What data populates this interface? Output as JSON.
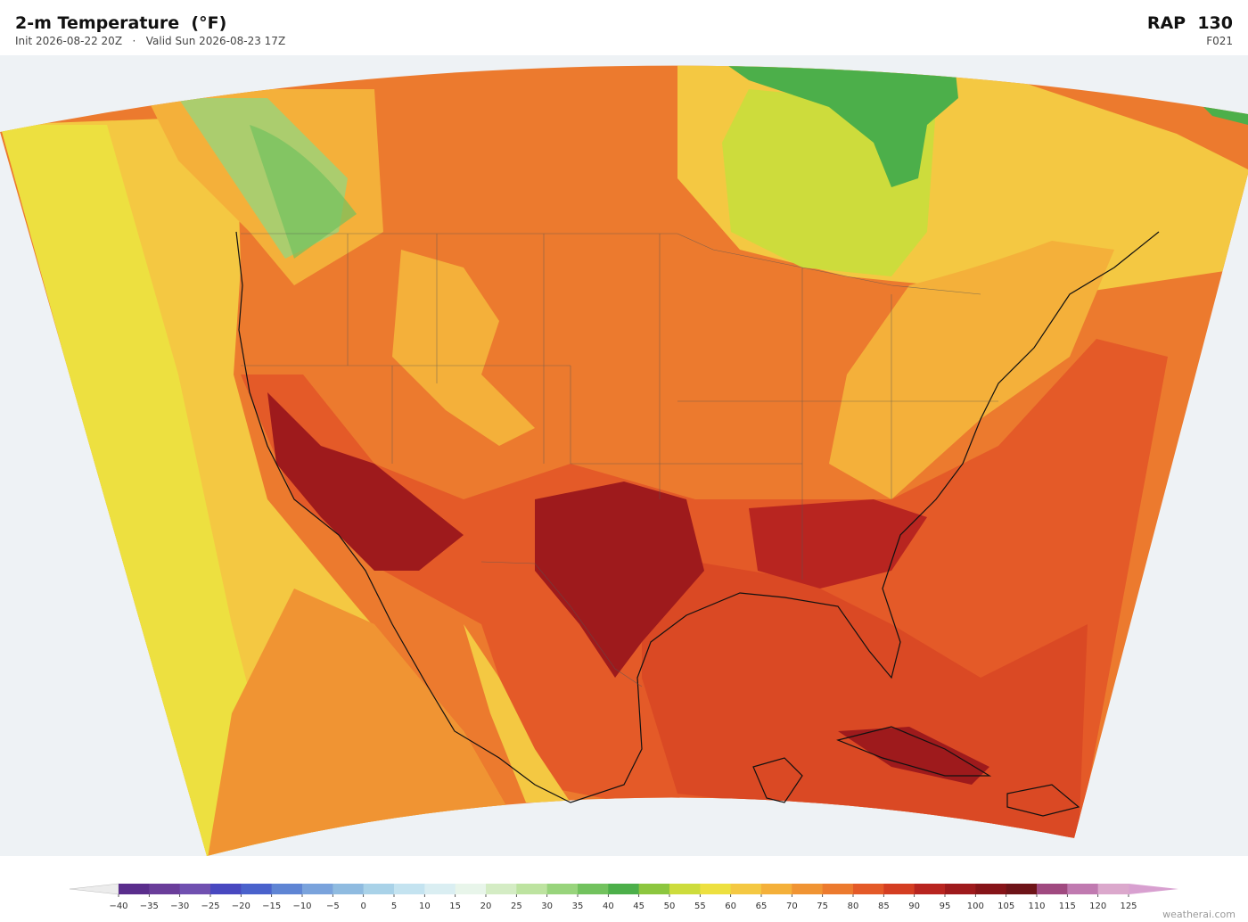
{
  "header": {
    "title": "2-m Temperature  (°F)",
    "subtitle": "Init 2026-08-22 20Z   ·   Valid Sun 2026-08-23 17Z",
    "model": "RAP  130",
    "forecast_hour": "F021"
  },
  "colorbar": {
    "ticks": [
      {
        "value": -40,
        "label": "−40"
      },
      {
        "value": -35,
        "label": "−35"
      },
      {
        "value": -30,
        "label": "−30"
      },
      {
        "value": -25,
        "label": "−25"
      },
      {
        "value": -20,
        "label": "−20"
      },
      {
        "value": -15,
        "label": "−15"
      },
      {
        "value": -10,
        "label": "−10"
      },
      {
        "value": -5,
        "label": "−5"
      },
      0,
      5,
      10,
      15,
      20,
      25,
      30,
      35,
      40,
      45,
      50,
      55,
      60,
      65,
      70,
      75,
      80,
      85,
      90,
      95,
      100,
      105,
      110,
      115,
      120,
      125
    ],
    "colors": [
      "#5a2d8c",
      "#6a3d9a",
      "#7050b0",
      "#4848c0",
      "#4a62cc",
      "#5f85d4",
      "#7aa3dc",
      "#8fbbe0",
      "#a9d2e8",
      "#c4e3f0",
      "#daeef2",
      "#e8f5ea",
      "#d4ecc4",
      "#bde3a0",
      "#98d47c",
      "#72c25e",
      "#4caf4a",
      "#8cc63f",
      "#cddc3c",
      "#ede040",
      "#f4c842",
      "#f4b03a",
      "#f09433",
      "#ec7a2e",
      "#e45a28",
      "#d43e22",
      "#b82520",
      "#9e1a1c",
      "#861418",
      "#6e1418",
      "#a04a80",
      "#c07ab0",
      "#dba8cc"
    ],
    "under_color": "#ececec",
    "over_color": "#d8a0d0"
  },
  "credit": "weatherai.com"
}
